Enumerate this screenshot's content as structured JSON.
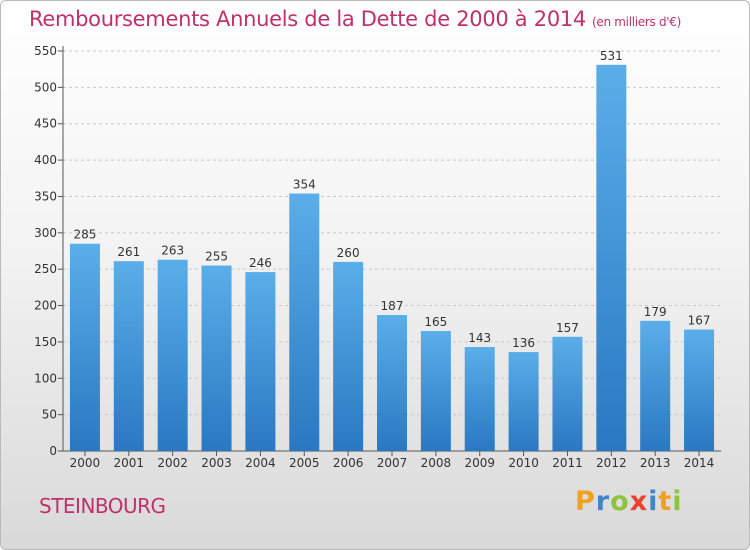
{
  "title": "Remboursements Annuels de la Dette de 2000 à 2014",
  "unit": "(en milliers d'€)",
  "city": "STEINBOURG",
  "logo": {
    "parts": [
      "P",
      "r",
      "o",
      "x",
      "i",
      "t",
      "i"
    ],
    "colors": [
      "#f0a21e",
      "#3f86c8",
      "#8cc43e",
      "#e8432f",
      "#3f86c8",
      "#f0a21e",
      "#8cc43e"
    ]
  },
  "chart_data": {
    "type": "bar",
    "title": "Remboursements Annuels de la Dette de 2000 à 2014",
    "categories": [
      "2000",
      "2001",
      "2002",
      "2003",
      "2004",
      "2005",
      "2006",
      "2007",
      "2008",
      "2009",
      "2010",
      "2011",
      "2012",
      "2013",
      "2014"
    ],
    "values": [
      285,
      261,
      263,
      255,
      246,
      354,
      260,
      187,
      165,
      143,
      136,
      157,
      531,
      179,
      167
    ],
    "ylim": [
      0,
      550
    ],
    "yticks": [
      0,
      50,
      100,
      150,
      200,
      250,
      300,
      350,
      400,
      450,
      500,
      550
    ],
    "grid": true,
    "bar_color": "#4f9fe0",
    "bar_color_dark": "#2f7cc7"
  }
}
